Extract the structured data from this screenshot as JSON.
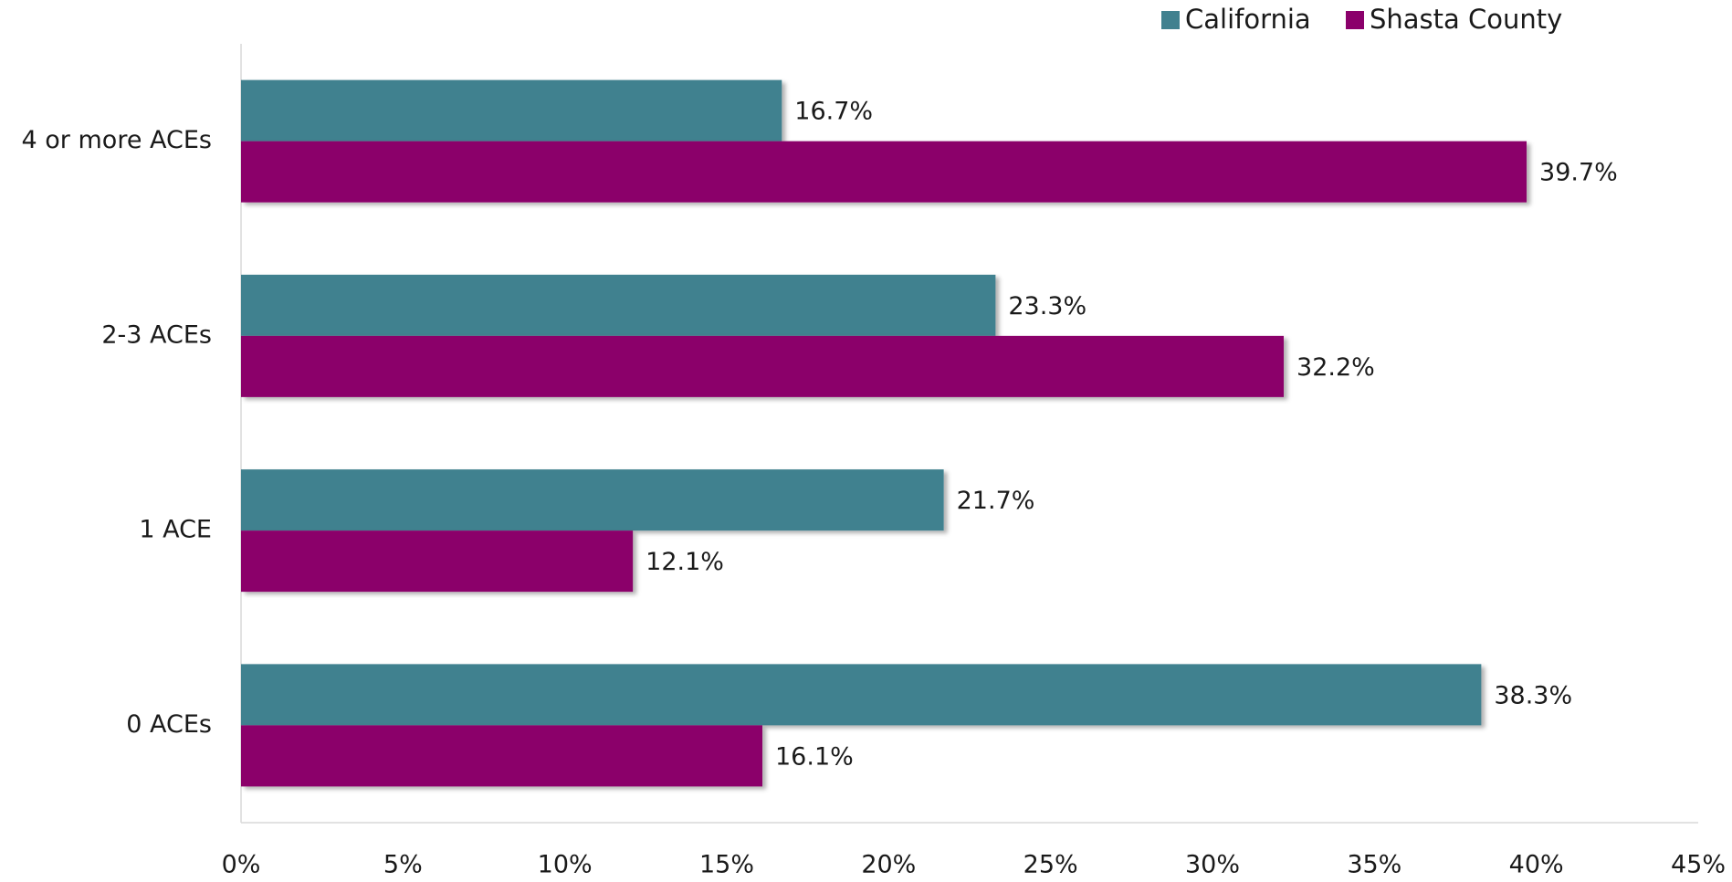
{
  "chart_data": {
    "type": "hbar",
    "categories": [
      "4 or more ACEs",
      "2-3 ACEs",
      "1 ACE",
      "0 ACEs"
    ],
    "series": [
      {
        "name": "California",
        "color": "#41818f",
        "values": [
          16.7,
          23.3,
          21.7,
          38.3
        ],
        "value_labels": [
          "16.7%",
          "23.3%",
          "21.7%",
          "38.3%"
        ]
      },
      {
        "name": "Shasta County",
        "color": "#8b006b",
        "values": [
          39.7,
          32.2,
          12.1,
          16.1
        ],
        "value_labels": [
          "39.7%",
          "32.2%",
          "12.1%",
          "16.1%"
        ]
      }
    ],
    "xlim": [
      0,
      45
    ],
    "xticks": [
      {
        "value": 0,
        "label": "0%"
      },
      {
        "value": 5,
        "label": "5%"
      },
      {
        "value": 10,
        "label": "10%"
      },
      {
        "value": 15,
        "label": "15%"
      },
      {
        "value": 20,
        "label": "20%"
      },
      {
        "value": 25,
        "label": "25%"
      },
      {
        "value": 30,
        "label": "30%"
      },
      {
        "value": 35,
        "label": "35%"
      },
      {
        "value": 40,
        "label": "40%"
      },
      {
        "value": 45,
        "label": "45%"
      }
    ],
    "legend": "top-right",
    "grid": false
  }
}
